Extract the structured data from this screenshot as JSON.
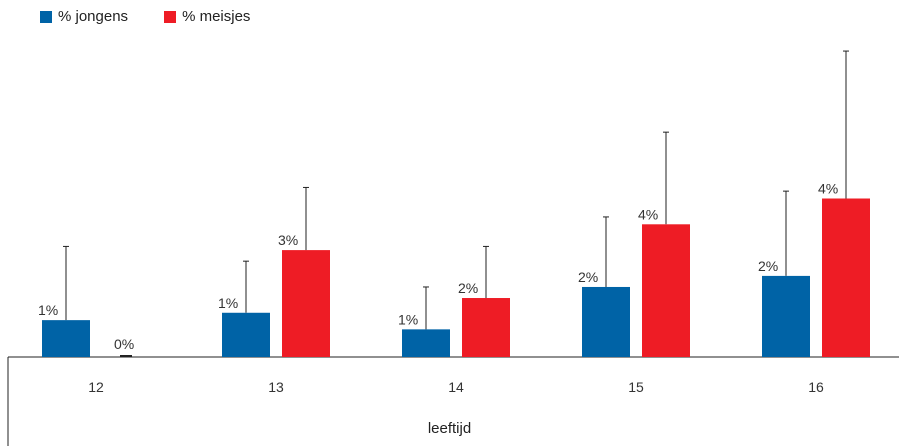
{
  "chart_data": {
    "type": "bar",
    "categories": [
      "12",
      "13",
      "14",
      "15",
      "16"
    ],
    "series": [
      {
        "name": "% jongens",
        "color": "#0063a6",
        "values": [
          1.0,
          1.2,
          0.75,
          1.9,
          2.2
        ],
        "labels": [
          "1%",
          "1%",
          "1%",
          "2%",
          "2%"
        ],
        "error_upper": [
          3.0,
          2.6,
          1.9,
          3.8,
          4.5
        ]
      },
      {
        "name": "% meisjes",
        "color": "#ee1c25",
        "values": [
          0.03,
          2.9,
          1.6,
          3.6,
          4.3
        ],
        "labels": [
          "0%",
          "3%",
          "2%",
          "4%",
          "4%"
        ],
        "error_upper": [
          null,
          4.6,
          3.0,
          6.1,
          8.3
        ]
      }
    ],
    "xlabel": "leeftijd",
    "ylim": [
      0,
      8.6
    ],
    "grid": false,
    "legend_position": "top-left"
  }
}
